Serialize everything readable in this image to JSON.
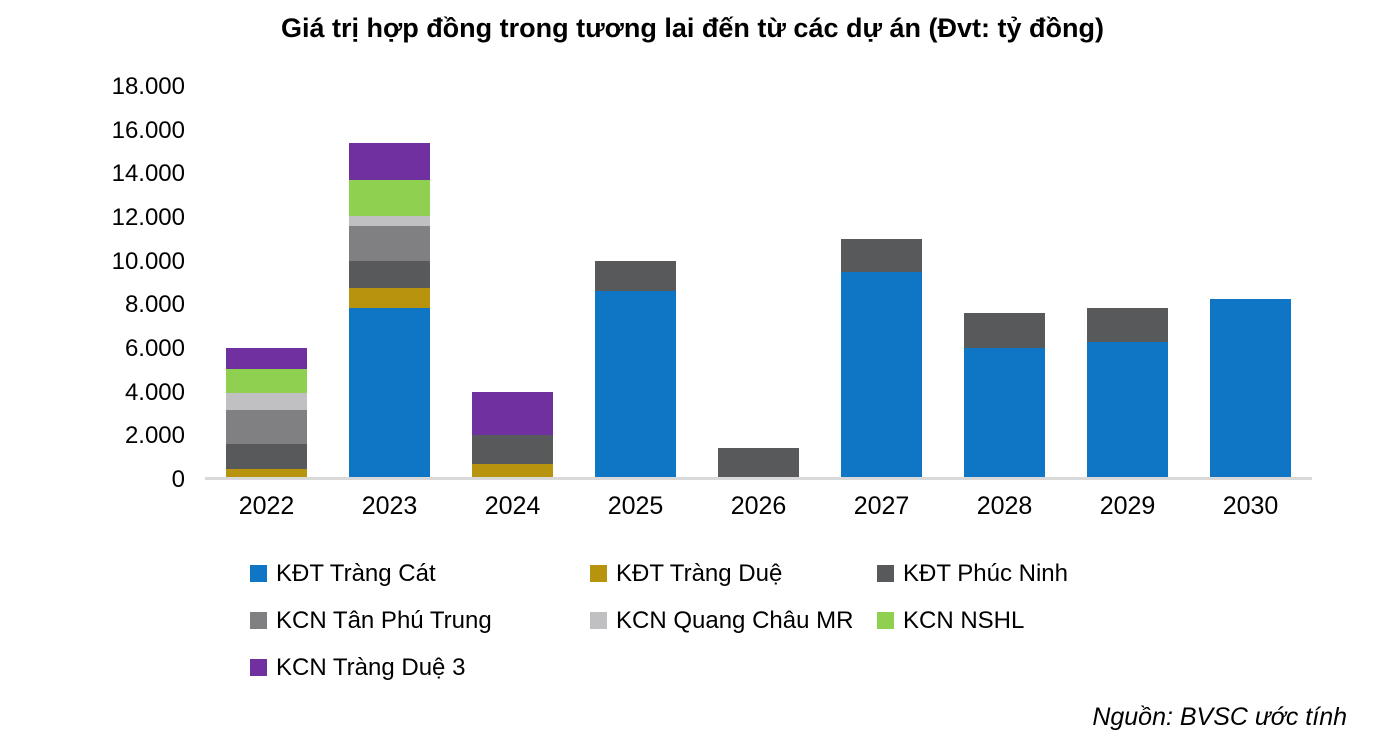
{
  "chart_data": {
    "type": "bar",
    "stacked": true,
    "title": "Giá trị hợp đồng trong tương lai đến từ các dự án (Đvt: tỷ đồng)",
    "unit": "tỷ đồng",
    "categories": [
      "2022",
      "2023",
      "2024",
      "2025",
      "2026",
      "2027",
      "2028",
      "2029",
      "2030"
    ],
    "series": [
      {
        "name": "KĐT Tràng Cát",
        "color": "#0f75c5",
        "values": [
          0,
          7900,
          0,
          8650,
          0,
          9550,
          6050,
          6300,
          8300
        ]
      },
      {
        "name": "KĐT Tràng Duệ",
        "color": "#b8940e",
        "values": [
          500,
          900,
          750,
          0,
          0,
          0,
          0,
          0,
          0
        ]
      },
      {
        "name": "KĐT Phúc Ninh",
        "color": "#58595b",
        "values": [
          1150,
          1250,
          1300,
          1400,
          1450,
          1500,
          1600,
          1600,
          0
        ]
      },
      {
        "name": "KCN Tân Phú Trung",
        "color": "#808083",
        "values": [
          1550,
          1600,
          0,
          0,
          0,
          0,
          0,
          0,
          0
        ]
      },
      {
        "name": "KCN Quang Châu MR",
        "color": "#c0c0c2",
        "values": [
          800,
          450,
          0,
          0,
          0,
          0,
          0,
          0,
          0
        ]
      },
      {
        "name": "KCN NSHL",
        "color": "#90d051",
        "values": [
          1100,
          1650,
          0,
          0,
          0,
          0,
          0,
          0,
          0
        ]
      },
      {
        "name": "KCN Tràng Duệ 3",
        "color": "#7030a0",
        "values": [
          950,
          1700,
          2000,
          0,
          0,
          0,
          0,
          0,
          0
        ]
      }
    ],
    "y_axis": {
      "min": 0,
      "max": 18000,
      "tick_step": 2000,
      "tick_labels": [
        "0",
        "2.000",
        "4.000",
        "6.000",
        "8.000",
        "10.000",
        "12.000",
        "14.000",
        "16.000",
        "18.000"
      ]
    },
    "grid": false,
    "legend_position": "bottom",
    "axis_line_color": "#d9d9d9",
    "source": "Nguồn: BVSC ước tính"
  }
}
